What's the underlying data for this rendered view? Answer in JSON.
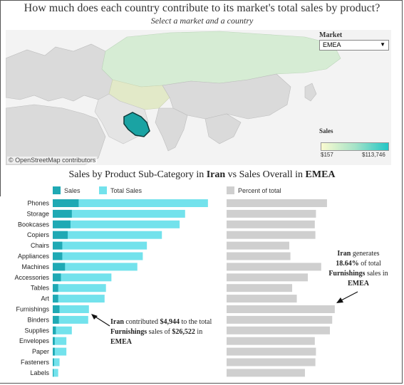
{
  "header": {
    "title": "How much does each country contribute to its market's total sales by product?",
    "subtitle": "Select a market and a country"
  },
  "map": {
    "attribution": "© OpenStreetMap contributors",
    "market_label": "Market",
    "market_value": "EMEA",
    "sales_legend_title": "Sales",
    "sales_min": "$157",
    "sales_max": "$113,746",
    "colors": {
      "land": "#dcdcdc",
      "sea": "#f3f3f3",
      "asia_fill": "#d6ecd4",
      "selected": "#1aa3a3"
    }
  },
  "section": {
    "title_prefix": "Sales by Product Sub-Category in ",
    "country": "Iran",
    "title_middle": " vs Sales Overall in ",
    "market": "EMEA"
  },
  "legend": {
    "sales_label": "Sales",
    "total_sales_label": "Total Sales",
    "percent_label": "Percent of total"
  },
  "annotations": {
    "left": {
      "country": "Iran",
      "t1": " contributed ",
      "amount": "$4,944",
      "t2": " to the total ",
      "category": "Furnishings",
      "t3": " sales of ",
      "total": "$26,522",
      "t4": " in ",
      "market": "EMEA"
    },
    "right": {
      "country": "Iran",
      "t1": " generates ",
      "pct": "18.64%",
      "t2": " of total ",
      "category": "Furnishings",
      "t3": " sales in ",
      "market": "EMEA"
    }
  },
  "chart_data": [
    {
      "type": "bar",
      "orientation": "horizontal",
      "categories": [
        "Phones",
        "Storage",
        "Bookcases",
        "Copiers",
        "Chairs",
        "Appliances",
        "Machines",
        "Accessories",
        "Tables",
        "Art",
        "Furnishings",
        "Binders",
        "Supplies",
        "Envelopes",
        "Paper",
        "Fasteners",
        "Labels"
      ],
      "series": [
        {
          "name": "Total Sales",
          "values": [
            113746,
            97000,
            93000,
            80000,
            69000,
            66000,
            62000,
            43000,
            39000,
            38000,
            26522,
            26000,
            14000,
            10000,
            10000,
            5000,
            4000
          ],
          "color": "#73e2ec"
        },
        {
          "name": "Sales",
          "values": [
            19000,
            14000,
            13000,
            11000,
            7000,
            7000,
            9000,
            6000,
            4000,
            4000,
            4944,
            4500,
            2300,
            1500,
            1500,
            900,
            600
          ],
          "color": "#1fa9b4"
        }
      ],
      "x_ticks": [
        "$0",
        "$20,000",
        "$40,000",
        "$60,000",
        "$80,000",
        "$100,000"
      ],
      "xlim": [
        0,
        118000
      ],
      "grid": false
    },
    {
      "type": "bar",
      "orientation": "horizontal",
      "categories": [
        "Phones",
        "Storage",
        "Bookcases",
        "Copiers",
        "Chairs",
        "Appliances",
        "Machines",
        "Accessories",
        "Tables",
        "Art",
        "Furnishings",
        "Binders",
        "Supplies",
        "Envelopes",
        "Paper",
        "Fasteners",
        "Labels"
      ],
      "series": [
        {
          "name": "Percent of total",
          "values": [
            17.3,
            15.4,
            15.2,
            15.3,
            10.8,
            11.0,
            16.3,
            14.0,
            11.3,
            12.1,
            18.64,
            18.2,
            17.8,
            15.2,
            15.4,
            15.3,
            13.5
          ],
          "color": "#cfcfcf"
        }
      ],
      "x_ticks": [
        "5.00%",
        "10.00%",
        "15.00%",
        "20.00%",
        "25.00%"
      ],
      "xlim": [
        0,
        27.5
      ],
      "grid": false
    }
  ]
}
